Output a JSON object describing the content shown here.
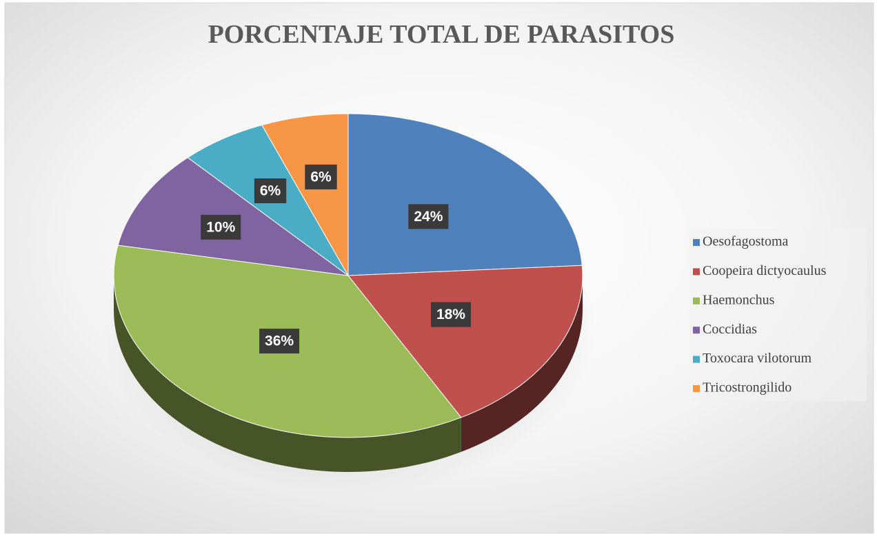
{
  "chart_data": {
    "type": "pie",
    "title": "PORCENTAJE TOTAL DE PARASITOS",
    "categories": [
      "Oesofagostoma",
      "Coopeira dictyocaulus",
      "Haemonchus",
      "Coccidias",
      "Toxocara vilotorum",
      "Tricostrongilido"
    ],
    "values": [
      24,
      18,
      36,
      10,
      6,
      6
    ],
    "value_labels": [
      "24%",
      "18%",
      "36%",
      "10%",
      "6%",
      "6%"
    ],
    "colors": [
      "#4f81bd",
      "#c0504d",
      "#9bbb59",
      "#8064a2",
      "#4bacc6",
      "#f79646"
    ],
    "legend": "right"
  }
}
